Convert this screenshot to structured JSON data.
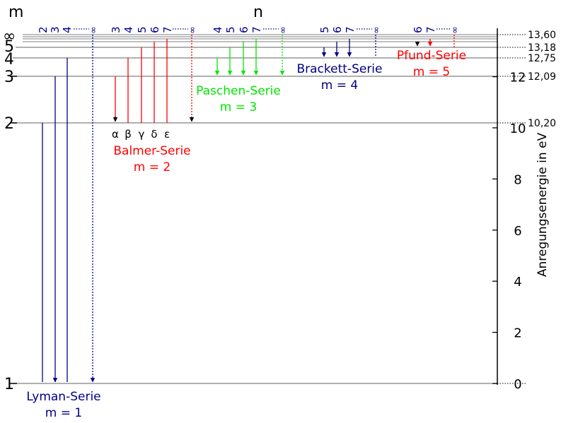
{
  "labels": {
    "m_header": "m",
    "n_header": "n",
    "energy_axis_label": "Anregungsenergie in eV"
  },
  "level_labels": {
    "m1": "1",
    "m2": "2",
    "m3": "3",
    "m4": "4",
    "m5": "5",
    "m_inf": "∞"
  },
  "energy_axis": {
    "min_ev": 0,
    "max_ev": 13.6,
    "ticks": [
      "0",
      "2",
      "4",
      "6",
      "8",
      "10",
      "12"
    ],
    "tick_values": [
      0,
      2,
      4,
      6,
      8,
      10,
      12
    ]
  },
  "level_energies": {
    "values": [
      "10,20",
      "12,09",
      "12,75",
      "13,18",
      "13,60"
    ],
    "numeric": [
      10.2,
      12.09,
      12.75,
      13.18,
      13.6
    ]
  },
  "colors": {
    "lyman": "#00008b",
    "balmer": "#ff0000",
    "paschen": "#00e600",
    "brackett": "#000080",
    "pfund": "#ff0000",
    "level_line": "#808080",
    "axis": "#000000"
  },
  "series": {
    "lyman": {
      "name": "Lyman-Serie",
      "m_label": "m = 1",
      "n_labels": [
        "2",
        "3",
        "4",
        "∞"
      ]
    },
    "balmer": {
      "name": "Balmer-Serie",
      "m_label": "m = 2",
      "n_labels": [
        "3",
        "4",
        "5",
        "6",
        "7",
        "∞"
      ],
      "greek": [
        "α",
        "β",
        "γ",
        "δ",
        "ε"
      ]
    },
    "paschen": {
      "name": "Paschen-Serie",
      "m_label": "m = 3",
      "n_labels": [
        "4",
        "5",
        "6",
        "7",
        "∞"
      ]
    },
    "brackett": {
      "name": "Brackett-Serie",
      "m_label": "m = 4",
      "n_labels": [
        "5",
        "6",
        "7",
        "∞"
      ]
    },
    "pfund": {
      "name": "Pfund-Serie",
      "m_label": "m = 5",
      "n_labels": [
        "6",
        "7",
        "∞"
      ]
    }
  }
}
